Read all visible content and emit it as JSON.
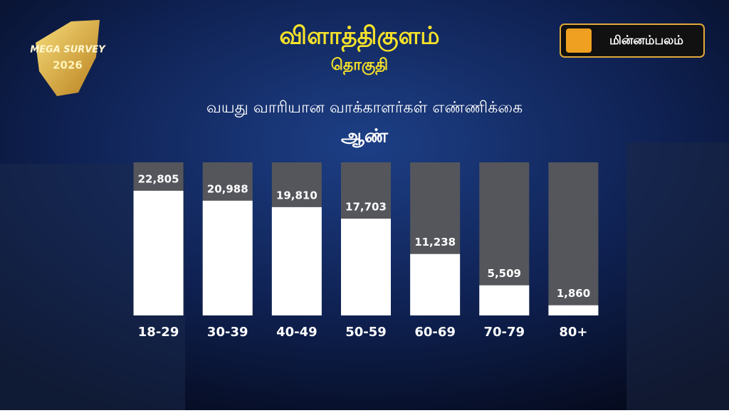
{
  "chart_data": {
    "type": "bar",
    "title": "விளாத்திகுளம்",
    "subtitle": "தொகுதி",
    "annotations": [
      "வயது வாரியான வாக்காளர்கள் எண்ணிக்கை",
      "ஆண்"
    ],
    "categories": [
      "18-29",
      "30-39",
      "40-49",
      "50-59",
      "60-69",
      "70-79",
      "80+"
    ],
    "values": [
      22805,
      20988,
      19810,
      17703,
      11238,
      5509,
      1860
    ],
    "value_labels": [
      "22,805",
      "20,988",
      "19,810",
      "17,703",
      "11,238",
      "5,509",
      "1,860"
    ],
    "color": "#ffffff",
    "track_color": "#55565c",
    "ylim": [
      0,
      28000
    ],
    "grid": false
  },
  "brand": "மின்னம்பலம்",
  "badge": {
    "line1": "MEGA SURVEY",
    "line2": "2026"
  }
}
